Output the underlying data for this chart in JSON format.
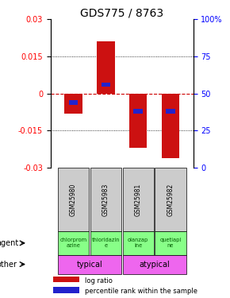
{
  "title": "GDS775 / 8763",
  "samples": [
    "GSM25980",
    "GSM25983",
    "GSM25981",
    "GSM25982"
  ],
  "log_ratios": [
    -0.008,
    0.021,
    -0.022,
    -0.026
  ],
  "percentile_ranks": [
    0.44,
    0.56,
    0.38,
    0.38
  ],
  "ylim": [
    -0.03,
    0.03
  ],
  "yticks_left": [
    -0.03,
    -0.015,
    0,
    0.015,
    0.03
  ],
  "yticks_right": [
    0,
    25,
    50,
    75,
    100
  ],
  "bar_color": "#cc1111",
  "pct_color": "#2222cc",
  "zero_line_color": "#cc0000",
  "agent_labels": [
    "chlorprom\nazine",
    "thioridazin\ne",
    "olanzap\nine",
    "quetiapi\nne"
  ],
  "agent_color": "#88ff88",
  "other_color": "#ee66ee",
  "sample_bg_color": "#cccccc",
  "legend_red": "log ratio",
  "legend_blue": "percentile rank within the sample",
  "title_fontsize": 10,
  "tick_fontsize": 7,
  "bar_width": 0.55,
  "pct_bar_width": 0.28,
  "pct_bar_height": 0.0018
}
